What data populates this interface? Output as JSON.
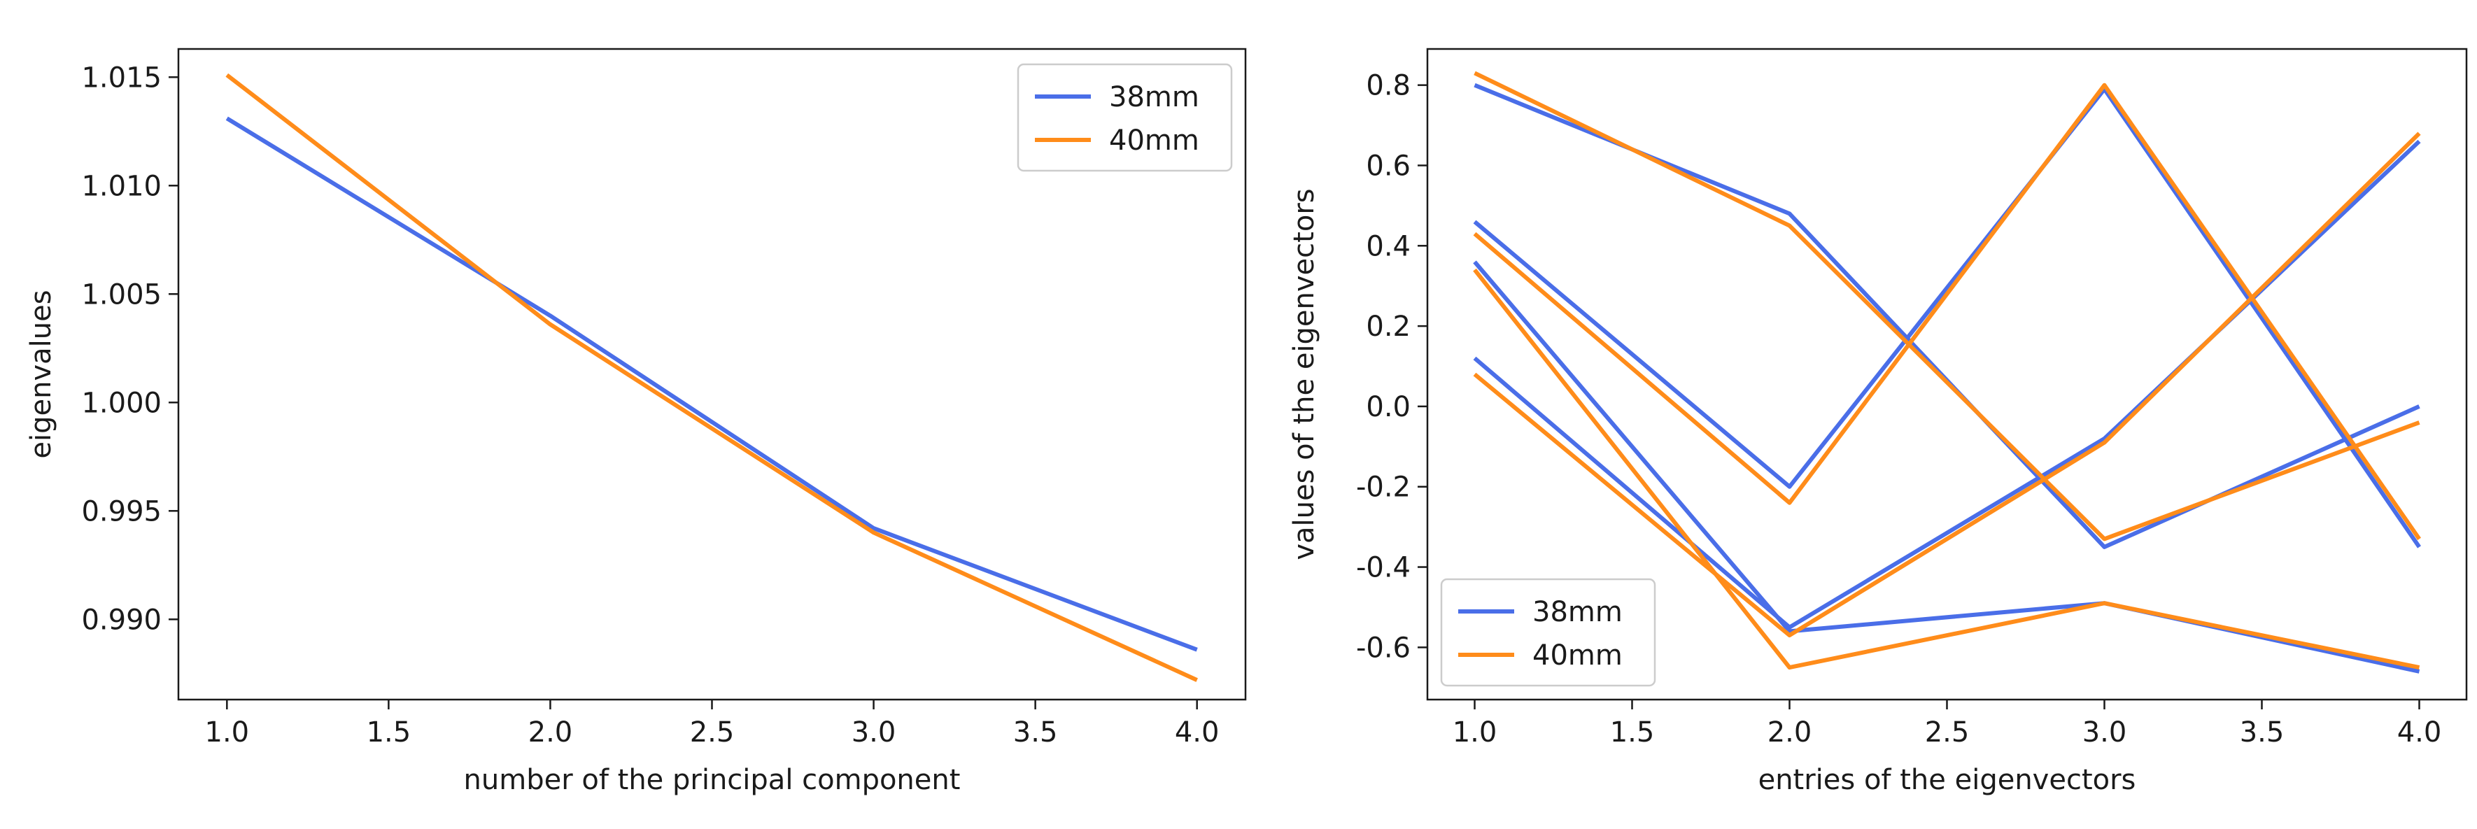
{
  "colors": {
    "s38": "#4a6ee8",
    "s40": "#ff8c1a",
    "axis": "#1a1a1a",
    "legend_border": "#cccccc"
  },
  "chart_data": [
    {
      "type": "line",
      "title": "",
      "xlabel": "number of the principal component",
      "ylabel": "eigenvalues",
      "xlim": [
        0.85,
        4.15
      ],
      "ylim": [
        0.9863,
        1.0163
      ],
      "xticks": [
        1.0,
        1.5,
        2.0,
        2.5,
        3.0,
        3.5,
        4.0
      ],
      "xtick_labels": [
        "1.0",
        "1.5",
        "2.0",
        "2.5",
        "3.0",
        "3.5",
        "4.0"
      ],
      "yticks": [
        0.99,
        0.995,
        1.0,
        1.005,
        1.01,
        1.015
      ],
      "ytick_labels": [
        "0.990",
        "0.995",
        "1.000",
        "1.005",
        "1.010",
        "1.015"
      ],
      "legend": {
        "position": "top-right",
        "entries": [
          "38mm",
          "40mm"
        ]
      },
      "series": [
        {
          "name": "38mm",
          "color_key": "s38",
          "x": [
            1,
            2,
            3,
            4
          ],
          "y": [
            1.0131,
            1.004,
            0.9942,
            0.9886
          ]
        },
        {
          "name": "40mm",
          "color_key": "s40",
          "x": [
            1,
            2,
            3,
            4
          ],
          "y": [
            1.0151,
            1.0036,
            0.994,
            0.9872
          ]
        }
      ]
    },
    {
      "type": "line",
      "title": "",
      "xlabel": "entries of the eigenvectors",
      "ylabel": "values of the eigenvectors",
      "xlim": [
        0.85,
        4.15
      ],
      "ylim": [
        -0.73,
        0.89
      ],
      "xticks": [
        1.0,
        1.5,
        2.0,
        2.5,
        3.0,
        3.5,
        4.0
      ],
      "xtick_labels": [
        "1.0",
        "1.5",
        "2.0",
        "2.5",
        "3.0",
        "3.5",
        "4.0"
      ],
      "yticks": [
        -0.6,
        -0.4,
        -0.2,
        0.0,
        0.2,
        0.4,
        0.6,
        0.8
      ],
      "ytick_labels": [
        "-0.6",
        "-0.4",
        "-0.2",
        "0.0",
        "0.2",
        "0.4",
        "0.6",
        "0.8"
      ],
      "legend": {
        "position": "bottom-left",
        "entries": [
          "38mm",
          "40mm"
        ]
      },
      "series": [
        {
          "name": "38mm",
          "color_key": "s38",
          "x": [
            1,
            2,
            3,
            4
          ],
          "y": [
            0.8,
            0.48,
            -0.35,
            0.0
          ]
        },
        {
          "name": "38mm",
          "color_key": "s38",
          "x": [
            1,
            2,
            3,
            4
          ],
          "y": [
            0.46,
            -0.2,
            0.79,
            -0.35
          ]
        },
        {
          "name": "38mm",
          "color_key": "s38",
          "x": [
            1,
            2,
            3,
            4
          ],
          "y": [
            0.36,
            -0.56,
            -0.49,
            -0.66
          ]
        },
        {
          "name": "38mm",
          "color_key": "s38",
          "x": [
            1,
            2,
            3,
            4
          ],
          "y": [
            0.12,
            -0.55,
            -0.08,
            0.66
          ]
        },
        {
          "name": "40mm",
          "color_key": "s40",
          "x": [
            1,
            2,
            3,
            4
          ],
          "y": [
            0.83,
            0.45,
            -0.33,
            -0.04
          ]
        },
        {
          "name": "40mm",
          "color_key": "s40",
          "x": [
            1,
            2,
            3,
            4
          ],
          "y": [
            0.43,
            -0.24,
            0.8,
            -0.33
          ]
        },
        {
          "name": "40mm",
          "color_key": "s40",
          "x": [
            1,
            2,
            3,
            4
          ],
          "y": [
            0.34,
            -0.65,
            -0.49,
            -0.65
          ]
        },
        {
          "name": "40mm",
          "color_key": "s40",
          "x": [
            1,
            2,
            3,
            4
          ],
          "y": [
            0.08,
            -0.57,
            -0.09,
            0.68
          ]
        }
      ]
    }
  ]
}
